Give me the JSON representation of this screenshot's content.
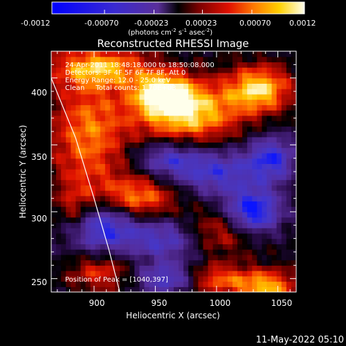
{
  "chart_data": {
    "type": "heatmap",
    "title": "Reconstructed RHESSI Image",
    "xlabel": "Heliocentric X (arcsec)",
    "ylabel": "Heliocentric Y (arcsec)",
    "xlim": [
      865,
      1065
    ],
    "ylim": [
      240,
      420
    ],
    "xticks": [
      "900",
      "950",
      "1000",
      "1050"
    ],
    "yticks": [
      "400",
      "350",
      "300",
      "250"
    ],
    "colorbar": {
      "range": [
        -0.0012,
        0.0012
      ],
      "ticks": [
        "-0.0012",
        "-0.00070",
        "-0.00023",
        "0.00023",
        "0.00070",
        "0.0012"
      ],
      "unit_prefix": "(photons cm",
      "unit_exp1": "-2",
      "unit_mid1": " s",
      "unit_exp2": "-1",
      "unit_mid2": " asec",
      "unit_exp3": "-2",
      "unit_suffix": ")"
    },
    "annotations": [
      "24-Apr-2011 18:48:18.000 to 18:50:08.000",
      "Detectors: 3F 4F 5F 6F 7F 8F, Att 0",
      "Energy Range: 12.0 - 25.0 keV",
      "Clean     Total counts: 1.70E+03"
    ],
    "peak_label": "Position of Peak = [1040,397]",
    "peak": {
      "x": 1040,
      "y": 397
    },
    "limb": [
      [
        865,
        400
      ],
      [
        885,
        355
      ],
      [
        900,
        310
      ],
      [
        912,
        272
      ],
      [
        921,
        240
      ]
    ],
    "blobs": [
      {
        "x": 975,
        "y": 375,
        "sx": 30,
        "sy": 16,
        "amp": 0.0012
      },
      {
        "x": 955,
        "y": 390,
        "sx": 16,
        "sy": 10,
        "amp": 0.001
      },
      {
        "x": 1035,
        "y": 392,
        "sx": 18,
        "sy": 12,
        "amp": 0.0011
      },
      {
        "x": 895,
        "y": 358,
        "sx": 22,
        "sy": 32,
        "amp": 0.0008
      },
      {
        "x": 935,
        "y": 310,
        "sx": 22,
        "sy": 12,
        "amp": 0.0009
      },
      {
        "x": 905,
        "y": 408,
        "sx": 28,
        "sy": 10,
        "amp": 0.0009
      },
      {
        "x": 1000,
        "y": 285,
        "sx": 24,
        "sy": 12,
        "amp": 0.0006
      },
      {
        "x": 1040,
        "y": 244,
        "sx": 18,
        "sy": 9,
        "amp": 0.001
      },
      {
        "x": 998,
        "y": 250,
        "sx": 18,
        "sy": 8,
        "amp": 0.0007
      },
      {
        "x": 905,
        "y": 255,
        "sx": 18,
        "sy": 10,
        "amp": 0.0006
      },
      {
        "x": 885,
        "y": 300,
        "sx": 12,
        "sy": 14,
        "amp": 0.0006
      },
      {
        "x": 1030,
        "y": 300,
        "sx": 16,
        "sy": 12,
        "amp": -0.0012
      },
      {
        "x": 1045,
        "y": 340,
        "sx": 14,
        "sy": 12,
        "amp": -0.0009
      },
      {
        "x": 905,
        "y": 290,
        "sx": 22,
        "sy": 14,
        "amp": -0.0011
      },
      {
        "x": 960,
        "y": 280,
        "sx": 22,
        "sy": 12,
        "amp": -0.0008
      },
      {
        "x": 1000,
        "y": 330,
        "sx": 24,
        "sy": 12,
        "amp": -0.0008
      },
      {
        "x": 960,
        "y": 340,
        "sx": 18,
        "sy": 10,
        "amp": -0.0007
      },
      {
        "x": 960,
        "y": 250,
        "sx": 18,
        "sy": 8,
        "amp": -0.0008
      }
    ]
  },
  "timestamp": "11-May-2022 05:10"
}
